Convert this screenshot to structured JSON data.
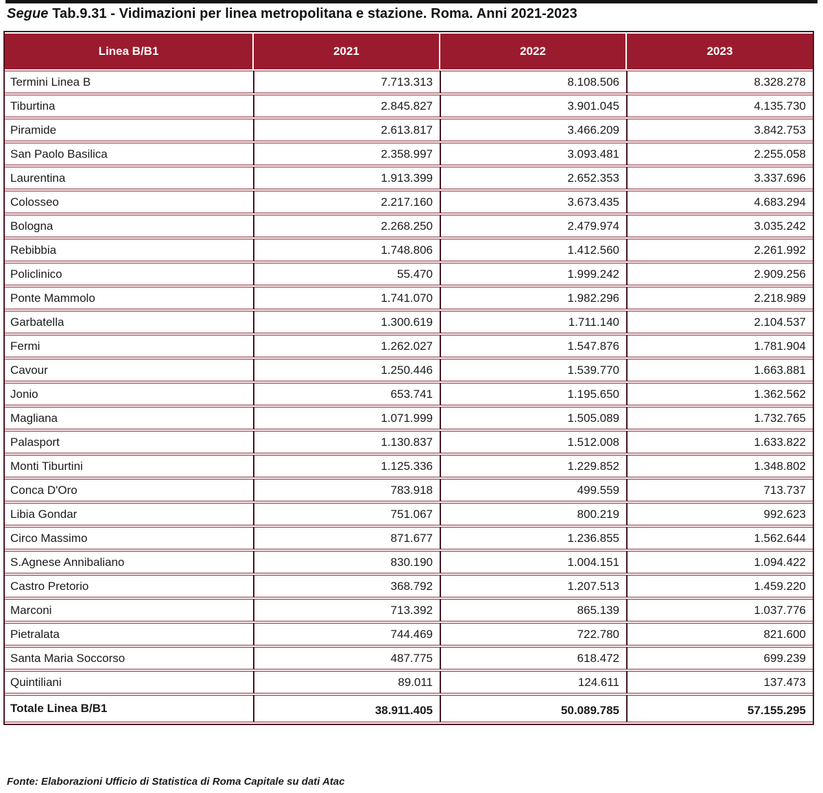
{
  "title": {
    "segue": "Segue",
    "rest": " Tab.9.31 - Vidimazioni per linea metropolitana e stazione. Roma. Anni 2021-2023"
  },
  "table": {
    "headers": [
      "Linea B/B1",
      "2021",
      "2022",
      "2023"
    ],
    "rows": [
      {
        "station": "Termini Linea B",
        "values": [
          "7.713.313",
          "8.108.506",
          "8.328.278"
        ]
      },
      {
        "station": "Tiburtina",
        "values": [
          "2.845.827",
          "3.901.045",
          "4.135.730"
        ]
      },
      {
        "station": "Piramide",
        "values": [
          "2.613.817",
          "3.466.209",
          "3.842.753"
        ]
      },
      {
        "station": "San Paolo Basilica",
        "values": [
          "2.358.997",
          "3.093.481",
          "2.255.058"
        ]
      },
      {
        "station": "Laurentina",
        "values": [
          "1.913.399",
          "2.652.353",
          "3.337.696"
        ]
      },
      {
        "station": "Colosseo",
        "values": [
          "2.217.160",
          "3.673.435",
          "4.683.294"
        ]
      },
      {
        "station": "Bologna",
        "values": [
          "2.268.250",
          "2.479.974",
          "3.035.242"
        ]
      },
      {
        "station": "Rebibbia",
        "values": [
          "1.748.806",
          "1.412.560",
          "2.261.992"
        ]
      },
      {
        "station": "Policlinico",
        "values": [
          "55.470",
          "1.999.242",
          "2.909.256"
        ]
      },
      {
        "station": "Ponte Mammolo",
        "values": [
          "1.741.070",
          "1.982.296",
          "2.218.989"
        ]
      },
      {
        "station": "Garbatella",
        "values": [
          "1.300.619",
          "1.711.140",
          "2.104.537"
        ]
      },
      {
        "station": "Fermi",
        "values": [
          "1.262.027",
          "1.547.876",
          "1.781.904"
        ]
      },
      {
        "station": "Cavour",
        "values": [
          "1.250.446",
          "1.539.770",
          "1.663.881"
        ]
      },
      {
        "station": "Jonio",
        "values": [
          "653.741",
          "1.195.650",
          "1.362.562"
        ]
      },
      {
        "station": "Magliana",
        "values": [
          "1.071.999",
          "1.505.089",
          "1.732.765"
        ]
      },
      {
        "station": "Palasport",
        "values": [
          "1.130.837",
          "1.512.008",
          "1.633.822"
        ]
      },
      {
        "station": "Monti Tiburtini",
        "values": [
          "1.125.336",
          "1.229.852",
          "1.348.802"
        ]
      },
      {
        "station": "Conca D'Oro",
        "values": [
          "783.918",
          "499.559",
          "713.737"
        ]
      },
      {
        "station": "Libia Gondar",
        "values": [
          "751.067",
          "800.219",
          "992.623"
        ]
      },
      {
        "station": "Circo Massimo",
        "values": [
          "871.677",
          "1.236.855",
          "1.562.644"
        ]
      },
      {
        "station": "S.Agnese Annibaliano",
        "values": [
          "830.190",
          "1.004.151",
          "1.094.422"
        ]
      },
      {
        "station": "Castro Pretorio",
        "values": [
          "368.792",
          "1.207.513",
          "1.459.220"
        ]
      },
      {
        "station": "Marconi",
        "values": [
          "713.392",
          "865.139",
          "1.037.776"
        ]
      },
      {
        "station": "Pietralata",
        "values": [
          "744.469",
          "722.780",
          "821.600"
        ]
      },
      {
        "station": "Santa Maria Soccorso",
        "values": [
          "487.775",
          "618.472",
          "699.239"
        ]
      },
      {
        "station": "Quintiliani",
        "values": [
          "89.011",
          "124.611",
          "137.473"
        ]
      }
    ],
    "total": {
      "label": "Totale Linea B/B1",
      "values": [
        "38.911.405",
        "50.089.785",
        "57.155.295"
      ]
    }
  },
  "footer": {
    "source": "Fonte: Elaborazioni Ufficio di Statistica di Roma Capitale su dati Atac"
  },
  "colors": {
    "header_bg": "#9b1b2e",
    "border_horizontal": "#8a2433",
    "border_vertical": "#42121c",
    "outer_border": "#4a1420",
    "text": "#1a1a1a"
  }
}
